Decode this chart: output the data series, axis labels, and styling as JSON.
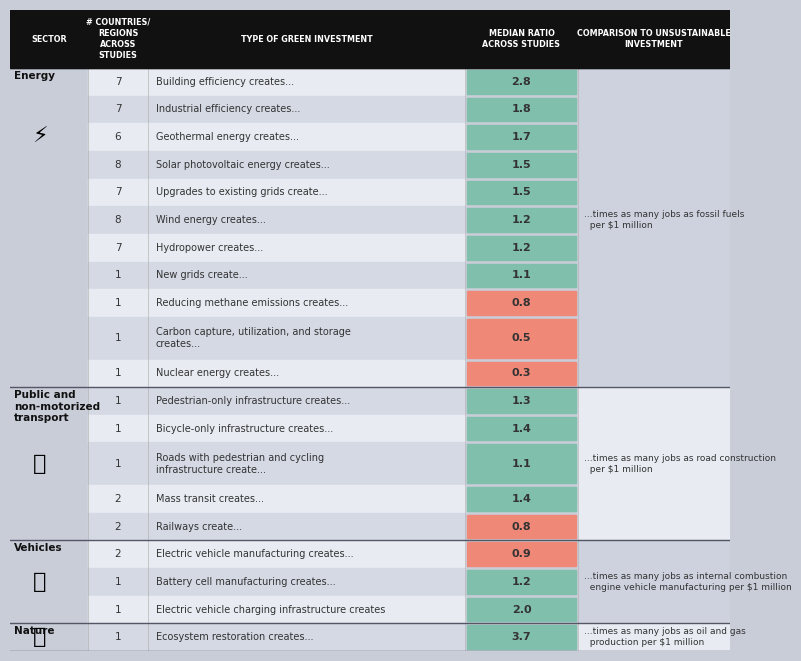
{
  "header_bg": "#111111",
  "header_text_color": "#ffffff",
  "col_headers": [
    "SECTOR",
    "# COUNTRIES/\nREGIONS\nACROSS\nSTUDIES",
    "TYPE OF GREEN INVESTMENT",
    "MEDIAN RATIO\nACROSS STUDIES",
    "COMPARISON TO UNSUSTAINABLE\nINVESTMENT"
  ],
  "rows": [
    {
      "sector": "Energy",
      "count": 7,
      "investment": "Building efficiency creates...",
      "ratio": 2.8,
      "comparison": "",
      "tall": false
    },
    {
      "sector": "",
      "count": 7,
      "investment": "Industrial efficiency creates...",
      "ratio": 1.8,
      "comparison": "",
      "tall": false
    },
    {
      "sector": "",
      "count": 6,
      "investment": "Geothermal energy creates...",
      "ratio": 1.7,
      "comparison": "",
      "tall": false
    },
    {
      "sector": "",
      "count": 8,
      "investment": "Solar photovoltaic energy creates...",
      "ratio": 1.5,
      "comparison": "",
      "tall": false
    },
    {
      "sector": "",
      "count": 7,
      "investment": "Upgrades to existing grids create...",
      "ratio": 1.5,
      "comparison": "",
      "tall": false
    },
    {
      "sector": "",
      "count": 8,
      "investment": "Wind energy creates...",
      "ratio": 1.2,
      "comparison": "...times as many jobs as fossil fuels\n  per $1 million",
      "tall": false
    },
    {
      "sector": "",
      "count": 7,
      "investment": "Hydropower creates...",
      "ratio": 1.2,
      "comparison": "",
      "tall": false
    },
    {
      "sector": "",
      "count": 1,
      "investment": "New grids create...",
      "ratio": 1.1,
      "comparison": "",
      "tall": false
    },
    {
      "sector": "",
      "count": 1,
      "investment": "Reducing methane emissions creates...",
      "ratio": 0.8,
      "comparison": "",
      "tall": false
    },
    {
      "sector": "",
      "count": 1,
      "investment": "Carbon capture, utilization, and storage\ncreates...",
      "ratio": 0.5,
      "comparison": "",
      "tall": true
    },
    {
      "sector": "",
      "count": 1,
      "investment": "Nuclear energy creates...",
      "ratio": 0.3,
      "comparison": "",
      "tall": false
    },
    {
      "sector": "Public and\nnon-motorized\ntransport",
      "count": 1,
      "investment": "Pedestrian-only infrastructure creates...",
      "ratio": 1.3,
      "comparison": "",
      "tall": false
    },
    {
      "sector": "",
      "count": 1,
      "investment": "Bicycle-only infrastructure creates...",
      "ratio": 1.4,
      "comparison": "",
      "tall": false
    },
    {
      "sector": "",
      "count": 1,
      "investment": "Roads with pedestrian and cycling\ninfrastructure create...",
      "ratio": 1.1,
      "comparison": "...times as many jobs as road construction\n  per $1 million",
      "tall": true
    },
    {
      "sector": "",
      "count": 2,
      "investment": "Mass transit creates...",
      "ratio": 1.4,
      "comparison": "",
      "tall": false
    },
    {
      "sector": "",
      "count": 2,
      "investment": "Railways create...",
      "ratio": 0.8,
      "comparison": "",
      "tall": false
    },
    {
      "sector": "Vehicles",
      "count": 2,
      "investment": "Electric vehicle manufacturing creates...",
      "ratio": 0.9,
      "comparison": "",
      "tall": false
    },
    {
      "sector": "",
      "count": 1,
      "investment": "Battery cell manufacturing creates...",
      "ratio": 1.2,
      "comparison": "...times as many jobs as internal combustion\n  engine vehicle manufacturing per $1 million",
      "tall": false
    },
    {
      "sector": "",
      "count": 1,
      "investment": "Electric vehicle charging infrastructure creates",
      "ratio": 2.0,
      "comparison": "",
      "tall": false
    },
    {
      "sector": "Nature",
      "count": 1,
      "investment": "Ecosystem restoration creates...",
      "ratio": 3.7,
      "comparison": "...times as many jobs as oil and gas\n  production per $1 million",
      "tall": false
    }
  ],
  "sector_groups": [
    {
      "name": "Energy",
      "start": 0,
      "end": 10,
      "comp_bg": "#cdd2de"
    },
    {
      "name": "Public and\nnon-motorized\ntransport",
      "start": 11,
      "end": 15,
      "comp_bg": "#e8ecf2"
    },
    {
      "name": "Vehicles",
      "start": 16,
      "end": 18,
      "comp_bg": "#cdd2de"
    },
    {
      "name": "Nature",
      "start": 19,
      "end": 19,
      "comp_bg": "#e8ecf2"
    }
  ],
  "green_color": "#80bfac",
  "red_color": "#f08878",
  "row_colors": [
    "#e8ecf2",
    "#d4d9e4"
  ],
  "sector_bg": "#c8cdd8",
  "separator_color": "#555566",
  "text_dark": "#333333",
  "header_text": "#ffffff"
}
